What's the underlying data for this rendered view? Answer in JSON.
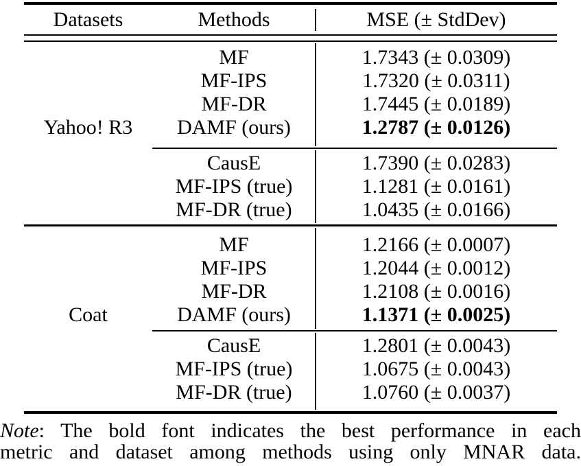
{
  "table": {
    "header": {
      "datasets": "Datasets",
      "methods": "Methods",
      "mse": "MSE (± StdDev)"
    },
    "sections": [
      {
        "dataset": "Yahoo! R3",
        "mnar_group": [
          {
            "method": "MF",
            "mse": "1.7343 (± 0.0309)",
            "best": false
          },
          {
            "method": "MF-IPS",
            "mse": "1.7320 (± 0.0311)",
            "best": false
          },
          {
            "method": "MF-DR",
            "mse": "1.7445 (± 0.0189)",
            "best": false
          },
          {
            "method": "DAMF (ours)",
            "mse": "1.2787 (± 0.0126)",
            "best": true
          }
        ],
        "oracle_group": [
          {
            "method": "CausE",
            "mse": "1.7390 (± 0.0283)",
            "best": false
          },
          {
            "method": "MF-IPS (true)",
            "mse": "1.1281 (± 0.0161)",
            "best": false
          },
          {
            "method": "MF-DR (true)",
            "mse": "1.0435 (± 0.0166)",
            "best": false
          }
        ]
      },
      {
        "dataset": "Coat",
        "mnar_group": [
          {
            "method": "MF",
            "mse": "1.2166 (± 0.0007)",
            "best": false
          },
          {
            "method": "MF-IPS",
            "mse": "1.2044 (± 0.0012)",
            "best": false
          },
          {
            "method": "MF-DR",
            "mse": "1.2108 (± 0.0016)",
            "best": false
          },
          {
            "method": "DAMF (ours)",
            "mse": "1.1371 (± 0.0025)",
            "best": true
          }
        ],
        "oracle_group": [
          {
            "method": "CausE",
            "mse": "1.2801 (± 0.0043)",
            "best": false
          },
          {
            "method": "MF-IPS (true)",
            "mse": "1.0675 (± 0.0043)",
            "best": false
          },
          {
            "method": "MF-DR (true)",
            "mse": "1.0760 (± 0.0037)",
            "best": false
          }
        ]
      }
    ]
  },
  "note": {
    "label": "Note",
    "line1_rest": ": The bold font indicates the best performance in each",
    "line2": "metric and dataset among methods using only MNAR data."
  },
  "colors": {
    "text": "#000000",
    "rule": "#000000",
    "background": "#ffffff"
  }
}
